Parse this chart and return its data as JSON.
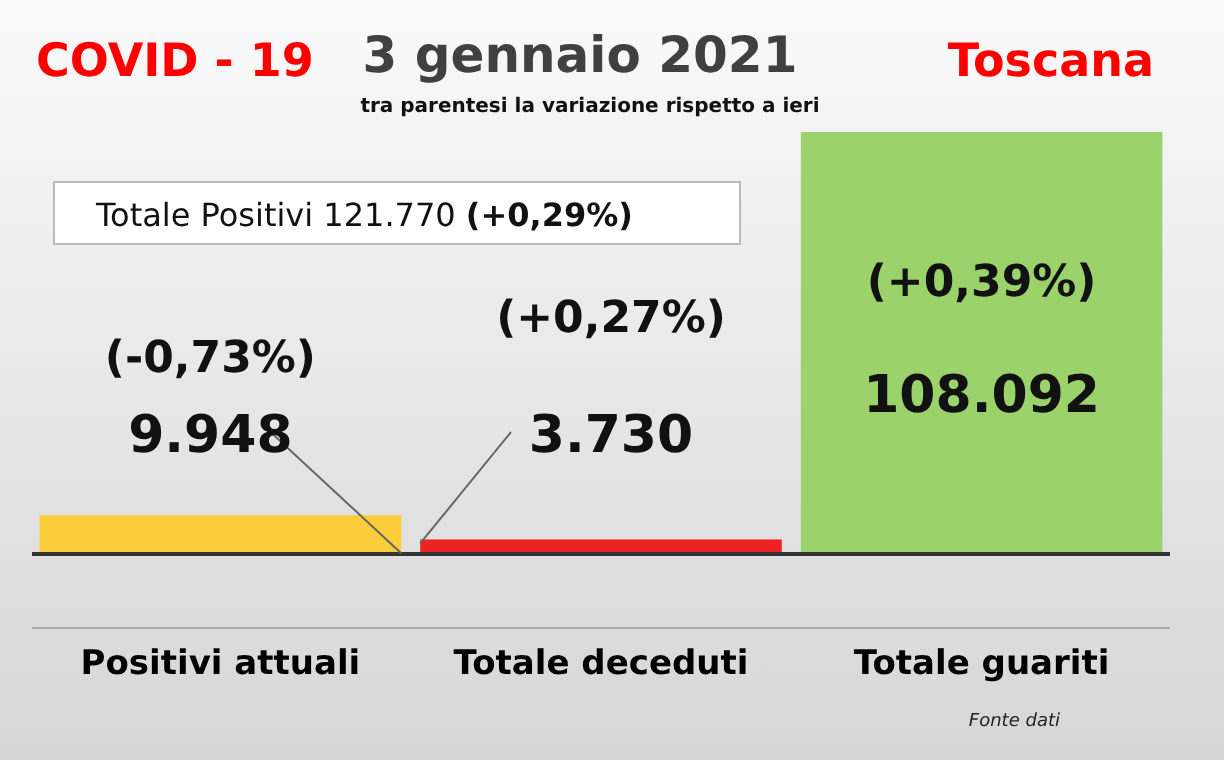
{
  "chart_data": {
    "type": "bar",
    "title": "3 gennaio 2021",
    "subtitle": "tra parentesi la variazione rispetto a ieri",
    "categories": [
      "Positivi attuali",
      "Totale deceduti",
      "Totale guariti"
    ],
    "values": [
      9948,
      3730,
      108092
    ],
    "colors": [
      "#fccd3b",
      "#ee2222",
      "#9bd26b"
    ],
    "value_labels": [
      "9.948",
      "3.730",
      "108.092"
    ],
    "annotations": [
      "COVID - 19",
      "Toscana",
      "Totale Positivi   121.770 (+0,29%)",
      "Fonte dati",
      "(-0,73%)",
      "(+0,27%)",
      "(+0,39%)"
    ]
  }
}
